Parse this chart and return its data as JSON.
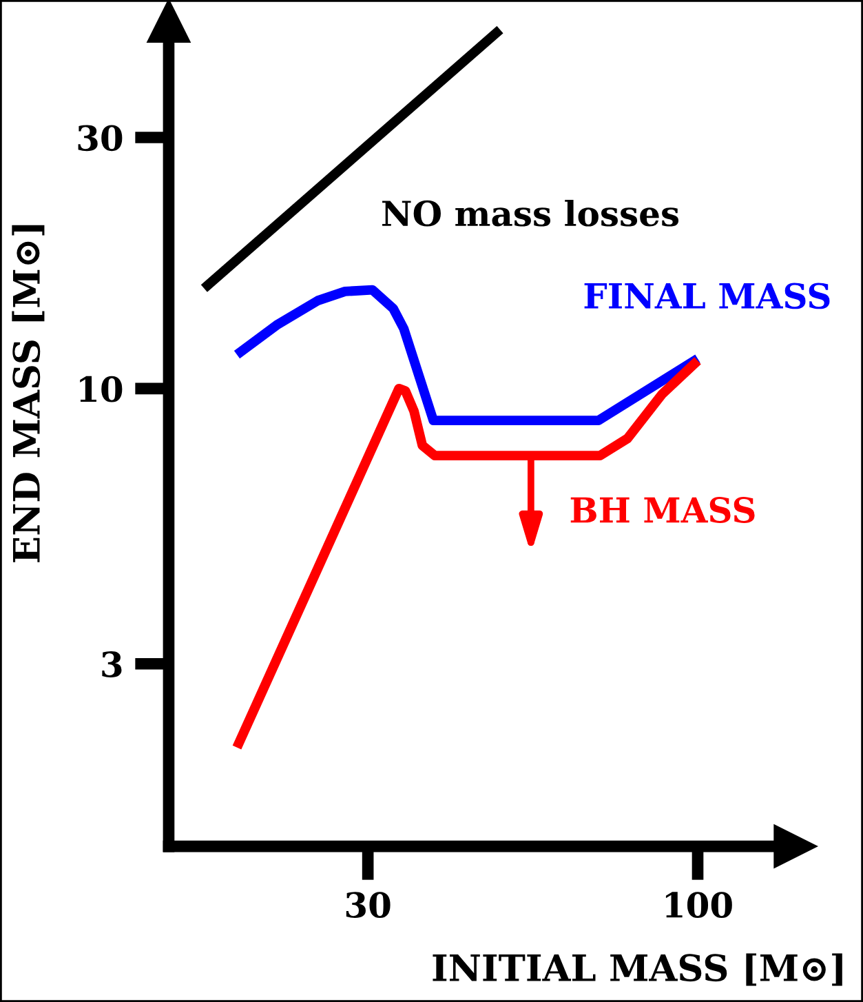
{
  "chart_data": {
    "type": "line",
    "xlabel": "INITIAL MASS [M⊙]",
    "ylabel": "END MASS [M⊙]",
    "log": "xy",
    "xlim": [
      14.5,
      143
    ],
    "ylim": [
      1.35,
      50
    ],
    "xticks": [
      30,
      100
    ],
    "yticks": [
      3,
      10,
      30
    ],
    "grid": false,
    "marker": "none",
    "line_style": "solid",
    "series": [
      {
        "name": "NO mass losses",
        "color": "#000000",
        "x": [
          16.5,
          48.6
        ],
        "values": [
          15.5,
          48.1
        ]
      },
      {
        "name": "FINAL MASS",
        "color": "#0000ff",
        "x": [
          18.6,
          21.5,
          25.0,
          27.6,
          30.5,
          32.9,
          34.2,
          38.1,
          69.6,
          100
        ],
        "values": [
          11.6,
          13.2,
          14.7,
          15.3,
          15.4,
          14.2,
          13.0,
          8.7,
          8.7,
          11.4
        ]
      },
      {
        "color": "#ff0000",
        "x": [
          18.6,
          33.6,
          34.4,
          35.5,
          36.6,
          38.3,
          70,
          77.4,
          87.8,
          100
        ],
        "values": [
          2.08,
          10,
          9.9,
          9.06,
          7.8,
          7.46,
          7.46,
          8.04,
          9.76,
          11.3
        ]
      }
    ],
    "annotations": [
      {
        "text": "BH MASS",
        "x": 54.4,
        "y": 7.46
      }
    ]
  }
}
